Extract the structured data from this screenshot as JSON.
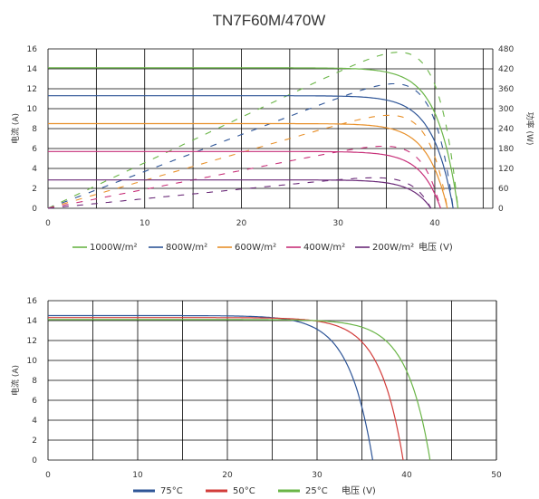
{
  "page_title": "TN7F60M/470W",
  "chart_data": [
    {
      "type": "line",
      "title": "TN7F60M/470W",
      "xlabel": "电压 (V)",
      "ylabel": "电流 (A)",
      "y2label": "功率 (W)",
      "xlim": [
        0,
        46
      ],
      "ylim": [
        0,
        16
      ],
      "y2lim": [
        0,
        480
      ],
      "xticks": [
        "0",
        "10",
        "20",
        "30",
        "40"
      ],
      "yticks": [
        "0",
        "2",
        "4",
        "6",
        "8",
        "10",
        "12",
        "14",
        "16"
      ],
      "y2ticks": [
        "0",
        "60",
        "120",
        "180",
        "240",
        "300",
        "360",
        "420",
        "480"
      ],
      "grid": true,
      "legend_position": "bottom",
      "series": [
        {
          "name": "1000W/m²",
          "color": "#6ab547",
          "isc": 14.1,
          "voc": 42.4,
          "vknee": 35.0,
          "pmax": 470
        },
        {
          "name": "800W/m²",
          "color": "#2e5597",
          "isc": 11.3,
          "voc": 41.9,
          "vknee": 34.5,
          "pmax": 375
        },
        {
          "name": "600W/m²",
          "color": "#e8902a",
          "isc": 8.5,
          "voc": 41.3,
          "vknee": 34.0,
          "pmax": 280
        },
        {
          "name": "400W/m²",
          "color": "#c8317a",
          "isc": 5.7,
          "voc": 40.6,
          "vknee": 33.5,
          "pmax": 187
        },
        {
          "name": "200W/m²",
          "color": "#6a2a78",
          "isc": 2.85,
          "voc": 39.6,
          "vknee": 32.5,
          "pmax": 92
        }
      ]
    },
    {
      "type": "line",
      "xlabel": "电压 (V)",
      "ylabel": "电流 (A)",
      "xlim": [
        0,
        50
      ],
      "ylim": [
        0,
        16
      ],
      "xticks": [
        "0",
        "10",
        "20",
        "30",
        "40",
        "50"
      ],
      "yticks": [
        "0",
        "2",
        "4",
        "6",
        "8",
        "10",
        "12",
        "14",
        "16"
      ],
      "grid": true,
      "legend_position": "bottom",
      "series": [
        {
          "name": "75°C",
          "color": "#2e5597",
          "isc": 14.5,
          "voc": 36.2,
          "vknee": 27.0
        },
        {
          "name": "50°C",
          "color": "#d23c3a",
          "isc": 14.3,
          "voc": 39.6,
          "vknee": 30.5
        },
        {
          "name": "25°C",
          "color": "#6ab547",
          "isc": 14.1,
          "voc": 42.6,
          "vknee": 33.5
        }
      ]
    }
  ]
}
